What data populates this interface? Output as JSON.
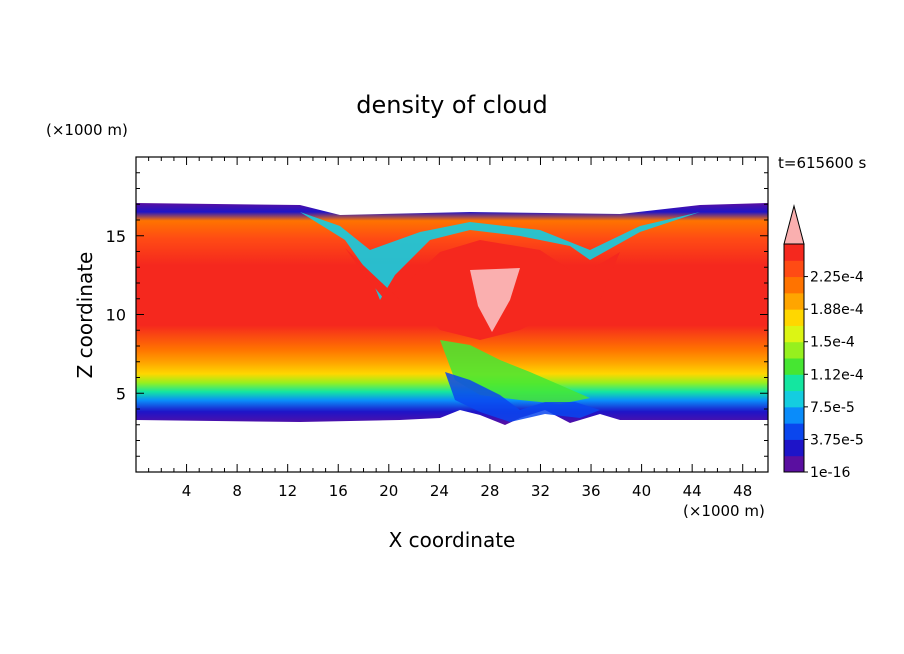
{
  "chart_data": {
    "type": "heatmap",
    "title": "density of cloud",
    "xlabel": "X coordinate",
    "ylabel": "Z coordinate",
    "x_unit": "(×1000 m)",
    "y_unit": "(×1000 m)",
    "time_label": "t=615600 s",
    "xlim": [
      0,
      50
    ],
    "ylim": [
      0,
      20
    ],
    "x_ticks": [
      4,
      8,
      12,
      16,
      20,
      24,
      28,
      32,
      36,
      40,
      44,
      48
    ],
    "y_ticks": [
      5,
      10,
      15
    ],
    "grid": false,
    "colorbar": {
      "position": "right",
      "extend": "max",
      "tick_labels": [
        "1e-16",
        "3.75e-5",
        "7.5e-5",
        "1.12e-4",
        "1.5e-4",
        "1.88e-4",
        "2.25e-4"
      ],
      "colors": [
        "#5a0fa0",
        "#1e14c8",
        "#0a46ee",
        "#0a8cfa",
        "#14cde0",
        "#14e6a0",
        "#46e632",
        "#96f01e",
        "#dcf514",
        "#ffd700",
        "#ffa500",
        "#ff7300",
        "#ff4b14",
        "#f5281e",
        "#faafaf"
      ]
    },
    "cloud_layer": {
      "description_values": "density field",
      "base_z": 3.5,
      "top_z_edges": 17,
      "top_z_center": 16.2,
      "core_range_z": [
        8,
        14
      ]
    }
  }
}
